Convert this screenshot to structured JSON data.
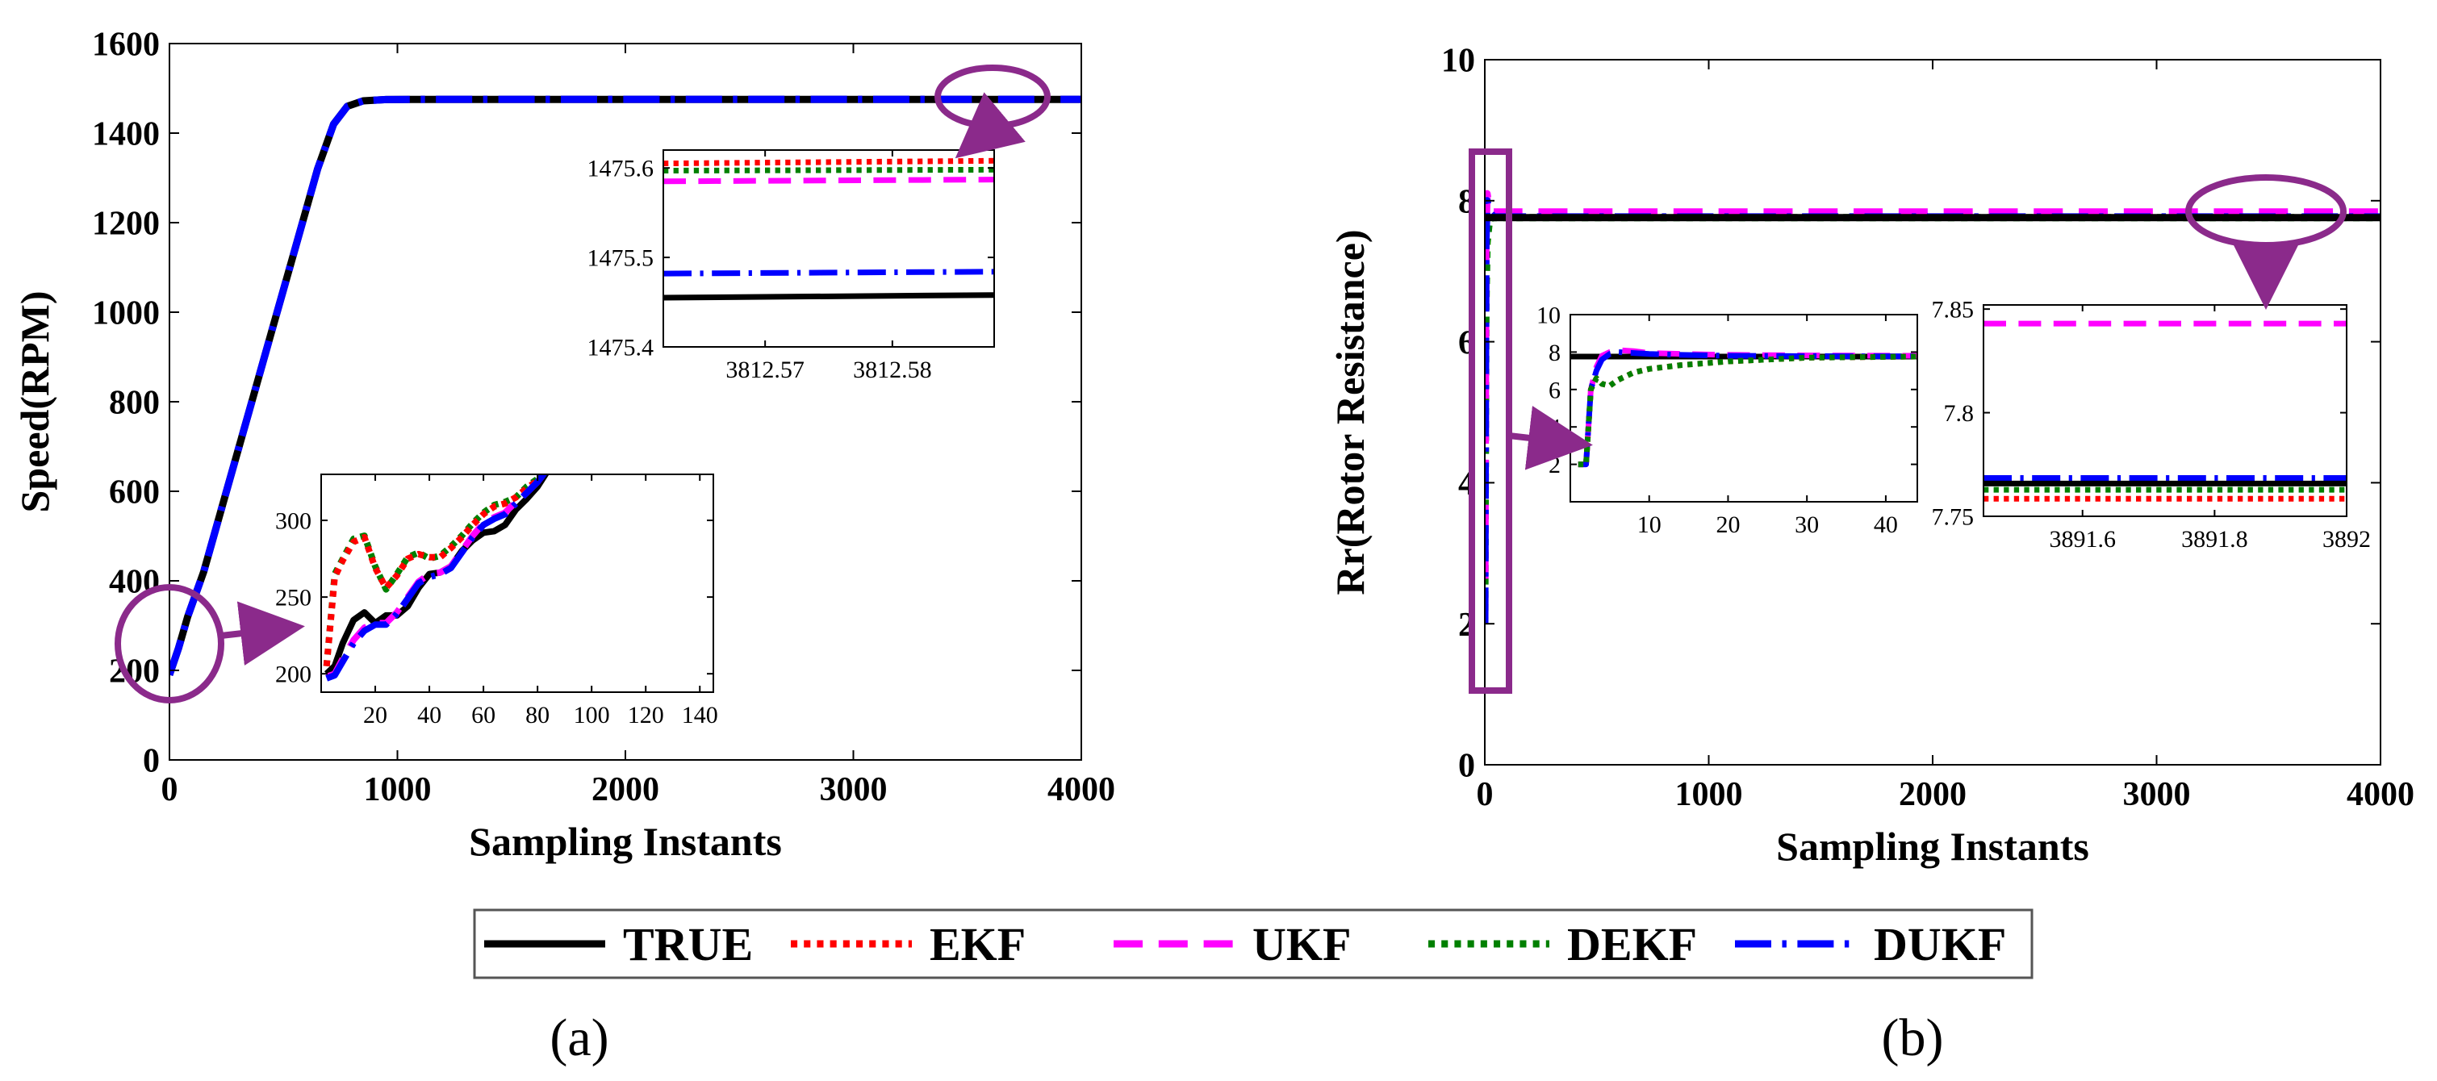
{
  "legend": {
    "entries": [
      {
        "label": "TRUE",
        "color": "#000000",
        "dash": "solid"
      },
      {
        "label": "EKF",
        "color": "#ff0000",
        "dash": "dot"
      },
      {
        "label": "UKF",
        "color": "#ff00ff",
        "dash": "dash"
      },
      {
        "label": "DEKF",
        "color": "#008000",
        "dash": "dot"
      },
      {
        "label": "DUKF",
        "color": "#0000ff",
        "dash": "dashdot"
      }
    ]
  },
  "panel_labels": {
    "a": "(a)",
    "b": "(b)"
  },
  "accent_color": "#8b2a8b",
  "chart_data": [
    {
      "id": "a-main",
      "type": "line",
      "xlabel": "Sampling Instants",
      "ylabel": "Speed(RPM)",
      "xlim": [
        0,
        4000
      ],
      "ylim": [
        0,
        1600
      ],
      "xticks": [
        0,
        1000,
        2000,
        3000,
        4000
      ],
      "yticks": [
        0,
        200,
        400,
        600,
        800,
        1000,
        1200,
        1400,
        1600
      ],
      "xtick_labels": [
        "0",
        "1000",
        "2000",
        "3000",
        "4000"
      ],
      "ytick_labels": [
        "0",
        "200",
        "400",
        "600",
        "800",
        "1000",
        "1200",
        "1400",
        "1600"
      ],
      "series": [
        {
          "name": "TRUE",
          "x": [
            0,
            40,
            80,
            150,
            250,
            350,
            450,
            550,
            650,
            720,
            780,
            850,
            950,
            1100,
            1500,
            2000,
            3000,
            4000
          ],
          "y": [
            190,
            250,
            320,
            420,
            600,
            780,
            960,
            1140,
            1320,
            1420,
            1460,
            1472,
            1475,
            1475.4,
            1475.4,
            1475.4,
            1475.4,
            1475.4
          ]
        },
        {
          "name": "DUKF",
          "x": [
            0,
            40,
            80,
            150,
            250,
            350,
            450,
            550,
            650,
            720,
            780,
            850,
            950,
            1100,
            1500,
            2000,
            3000,
            4000
          ],
          "y": [
            190,
            250,
            320,
            420,
            600,
            780,
            960,
            1140,
            1320,
            1420,
            1460,
            1472,
            1475,
            1475.5,
            1475.5,
            1475.5,
            1475.5,
            1475.5
          ]
        }
      ]
    },
    {
      "id": "a-inset-top",
      "type": "line",
      "xlim": [
        3812.562,
        3812.588
      ],
      "ylim": [
        1475.4,
        1475.62
      ],
      "xticks": [
        3812.57,
        3812.58
      ],
      "yticks": [
        1475.4,
        1475.5,
        1475.6
      ],
      "xtick_labels": [
        "3812.57",
        "3812.58"
      ],
      "ytick_labels": [
        "1475.4",
        "1475.5",
        "1475.6"
      ],
      "series": [
        {
          "name": "EKF",
          "x": [
            3812.562,
            3812.588
          ],
          "y": [
            1475.605,
            1475.608
          ]
        },
        {
          "name": "DEKF",
          "x": [
            3812.562,
            3812.588
          ],
          "y": [
            1475.597,
            1475.598
          ]
        },
        {
          "name": "UKF",
          "x": [
            3812.562,
            3812.588
          ],
          "y": [
            1475.585,
            1475.587
          ]
        },
        {
          "name": "DUKF",
          "x": [
            3812.562,
            3812.588
          ],
          "y": [
            1475.482,
            1475.484
          ]
        },
        {
          "name": "TRUE",
          "x": [
            3812.562,
            3812.588
          ],
          "y": [
            1475.455,
            1475.458
          ]
        }
      ]
    },
    {
      "id": "a-inset-bottom",
      "type": "line",
      "xlim": [
        0,
        145
      ],
      "ylim": [
        188,
        330
      ],
      "xticks": [
        20,
        40,
        60,
        80,
        100,
        120,
        140
      ],
      "yticks": [
        200,
        250,
        300
      ],
      "xtick_labels": [
        "20",
        "40",
        "60",
        "80",
        "100",
        "120",
        "140"
      ],
      "ytick_labels": [
        "200",
        "250",
        "300"
      ],
      "series": [
        {
          "name": "DEKF",
          "x": [
            2,
            5,
            8,
            12,
            16,
            20,
            24,
            28,
            32,
            36,
            40,
            44,
            48,
            52,
            56,
            60,
            64,
            68,
            72,
            76,
            80,
            84
          ],
          "y": [
            205,
            265,
            275,
            288,
            290,
            270,
            255,
            265,
            276,
            279,
            275,
            277,
            283,
            290,
            298,
            305,
            310,
            312,
            315,
            322,
            327,
            335
          ]
        },
        {
          "name": "EKF",
          "x": [
            2,
            5,
            8,
            12,
            16,
            20,
            24,
            28,
            32,
            36,
            40,
            44,
            48,
            52,
            56,
            60,
            64,
            68,
            72,
            76,
            80,
            84
          ],
          "y": [
            205,
            263,
            274,
            286,
            289,
            269,
            256,
            264,
            275,
            278,
            276,
            276,
            282,
            289,
            297,
            304,
            309,
            311,
            315,
            321,
            326,
            334
          ]
        },
        {
          "name": "TRUE",
          "x": [
            2,
            5,
            8,
            12,
            16,
            20,
            24,
            28,
            32,
            36,
            40,
            44,
            48,
            52,
            56,
            60,
            64,
            68,
            72,
            76,
            80,
            84
          ],
          "y": [
            200,
            205,
            220,
            235,
            240,
            233,
            238,
            238,
            244,
            256,
            265,
            266,
            270,
            280,
            287,
            292,
            293,
            297,
            307,
            314,
            322,
            333
          ]
        },
        {
          "name": "UKF",
          "x": [
            2,
            5,
            8,
            12,
            16,
            20,
            24,
            28,
            32,
            36,
            40,
            44,
            48,
            52,
            56,
            60,
            64,
            68,
            72,
            76,
            80,
            84
          ],
          "y": [
            198,
            200,
            210,
            222,
            230,
            233,
            233,
            240,
            250,
            260,
            265,
            266,
            270,
            280,
            290,
            298,
            302,
            305,
            312,
            318,
            325,
            334
          ]
        },
        {
          "name": "DUKF",
          "x": [
            2,
            5,
            8,
            12,
            16,
            20,
            24,
            28,
            32,
            36,
            40,
            44,
            48,
            52,
            56,
            60,
            64,
            68,
            72,
            76,
            80,
            84
          ],
          "y": [
            197,
            199,
            208,
            220,
            228,
            232,
            232,
            239,
            249,
            259,
            263,
            265,
            269,
            279,
            289,
            297,
            301,
            304,
            311,
            318,
            325,
            334
          ]
        }
      ]
    },
    {
      "id": "b-main",
      "type": "line",
      "xlabel": "Sampling Instants",
      "ylabel": "Rr(Rotor Resistance)",
      "xlim": [
        0,
        4000
      ],
      "ylim": [
        0,
        10
      ],
      "xticks": [
        0,
        1000,
        2000,
        3000,
        4000
      ],
      "yticks": [
        0,
        2,
        4,
        6,
        8,
        10
      ],
      "xtick_labels": [
        "0",
        "1000",
        "2000",
        "3000",
        "4000"
      ],
      "ytick_labels": [
        "0",
        "2",
        "4",
        "6",
        "8",
        "10"
      ],
      "series": [
        {
          "name": "DEKF",
          "x": [
            0,
            5,
            10,
            20,
            30,
            40,
            4000
          ],
          "y": [
            2,
            6.5,
            7.4,
            7.7,
            7.75,
            7.76,
            7.76
          ]
        },
        {
          "name": "UKF",
          "x": [
            0,
            5,
            10,
            20,
            40,
            4000
          ],
          "y": [
            2,
            7.5,
            8.1,
            7.9,
            7.84,
            7.84
          ]
        },
        {
          "name": "DUKF",
          "x": [
            0,
            5,
            10,
            20,
            40,
            4000
          ],
          "y": [
            2,
            7.4,
            8.0,
            7.85,
            7.77,
            7.77
          ]
        },
        {
          "name": "TRUE",
          "x": [
            0,
            4000
          ],
          "y": [
            7.76,
            7.76
          ]
        }
      ]
    },
    {
      "id": "b-inset-left",
      "type": "line",
      "xlim": [
        0,
        44
      ],
      "ylim": [
        0,
        10
      ],
      "xticks": [
        10,
        20,
        30,
        40
      ],
      "yticks": [
        2,
        4,
        6,
        8,
        10
      ],
      "xtick_labels": [
        "10",
        "20",
        "30",
        "40"
      ],
      "ytick_labels": [
        "2",
        "4",
        "6",
        "8",
        "10"
      ],
      "series": [
        {
          "name": "TRUE",
          "x": [
            0,
            44
          ],
          "y": [
            7.76,
            7.76
          ]
        },
        {
          "name": "UKF",
          "x": [
            1,
            2,
            2.6,
            3.3,
            4,
            5,
            6,
            8,
            10,
            14,
            20,
            30,
            44
          ],
          "y": [
            2,
            2,
            6,
            7.2,
            7.8,
            8.0,
            8.1,
            8.05,
            7.95,
            7.9,
            7.85,
            7.82,
            7.8
          ]
        },
        {
          "name": "DUKF",
          "x": [
            1,
            2,
            2.6,
            3.3,
            4,
            5,
            6,
            8,
            10,
            14,
            20,
            30,
            44
          ],
          "y": [
            2,
            2,
            6,
            7.0,
            7.6,
            7.9,
            8.0,
            7.95,
            7.9,
            7.85,
            7.8,
            7.78,
            7.77
          ]
        },
        {
          "name": "EKF",
          "x": [
            1,
            2,
            2.6,
            3.3,
            4,
            5,
            6,
            8,
            10,
            14,
            20,
            30,
            44
          ],
          "y": [
            2,
            2,
            6,
            6.6,
            6.3,
            6.2,
            6.5,
            6.9,
            7.1,
            7.3,
            7.5,
            7.7,
            7.76
          ]
        },
        {
          "name": "DEKF",
          "x": [
            1,
            2,
            2.6,
            3.3,
            4,
            5,
            6,
            8,
            10,
            14,
            20,
            30,
            44
          ],
          "y": [
            2,
            2,
            6,
            6.6,
            6.3,
            6.2,
            6.5,
            6.9,
            7.1,
            7.3,
            7.5,
            7.7,
            7.76
          ]
        }
      ]
    },
    {
      "id": "b-inset-right",
      "type": "line",
      "xlim": [
        3891.45,
        3892
      ],
      "ylim": [
        7.75,
        7.852
      ],
      "xticks": [
        3891.6,
        3891.8,
        3892
      ],
      "yticks": [
        7.75,
        7.8,
        7.85
      ],
      "xtick_labels": [
        "3891.6",
        "3891.8",
        "3892"
      ],
      "ytick_labels": [
        "7.75",
        "7.8",
        "7.85"
      ],
      "series": [
        {
          "name": "UKF",
          "x": [
            3891.45,
            3892
          ],
          "y": [
            7.843,
            7.843
          ]
        },
        {
          "name": "DUKF",
          "x": [
            3891.45,
            3892
          ],
          "y": [
            7.7685,
            7.7685
          ]
        },
        {
          "name": "TRUE",
          "x": [
            3891.45,
            3892
          ],
          "y": [
            7.7658,
            7.7658
          ]
        },
        {
          "name": "DEKF",
          "x": [
            3891.45,
            3892
          ],
          "y": [
            7.7628,
            7.7628
          ]
        },
        {
          "name": "EKF",
          "x": [
            3891.45,
            3892
          ],
          "y": [
            7.7585,
            7.7585
          ]
        }
      ]
    }
  ]
}
